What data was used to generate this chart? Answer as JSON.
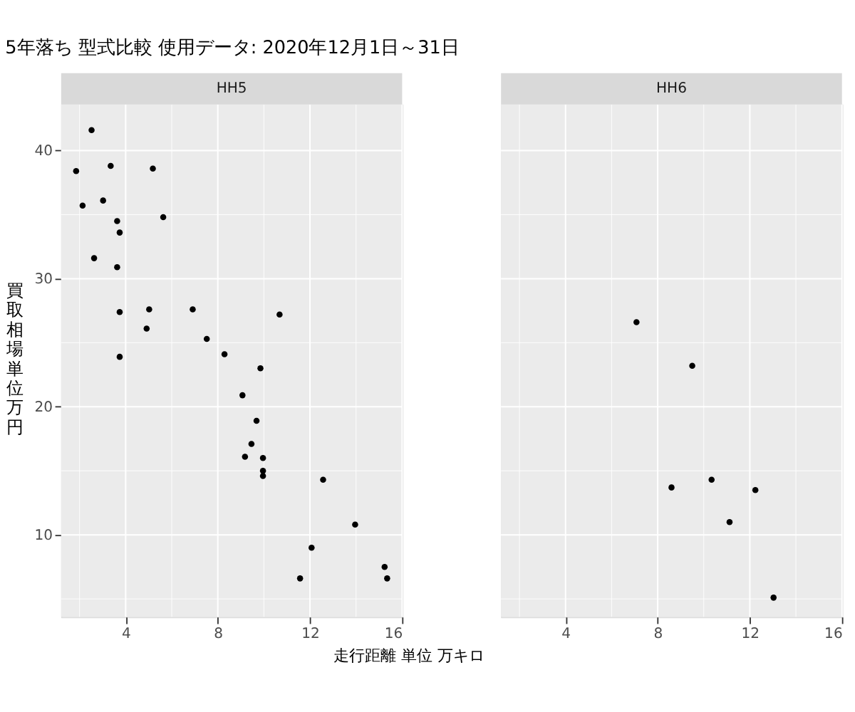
{
  "chart_data": [
    {
      "type": "scatter",
      "title": "HH5",
      "annotations": [
        "5年落ち 型式比較 使用データ: 2020年12月1日～31日"
      ],
      "xlabel": "走行距離 単位 万キロ",
      "ylabel": "買取相場単位万円",
      "color": "#000000",
      "marker": "circle",
      "grid": true,
      "x": [
        1.85,
        2.52,
        3.35,
        5.18,
        2.13,
        3.02,
        3.63,
        3.74,
        5.63,
        2.63,
        3.63,
        3.74,
        5.02,
        6.91,
        10.68,
        4.91,
        7.52,
        3.74,
        8.29,
        9.85,
        9.07,
        9.68,
        9.46,
        9.18,
        9.96,
        9.96,
        9.96,
        12.57,
        13.96,
        12.07,
        11.57,
        15.24,
        15.35
      ],
      "values": [
        38.4,
        41.6,
        38.8,
        38.6,
        35.7,
        36.1,
        34.5,
        33.6,
        34.8,
        31.6,
        30.9,
        27.4,
        27.6,
        27.6,
        27.2,
        26.1,
        25.3,
        23.9,
        24.1,
        23.0,
        20.9,
        18.9,
        17.1,
        16.1,
        16.0,
        15.0,
        14.6,
        14.3,
        10.8,
        9.0,
        6.6,
        7.5,
        6.6
      ],
      "xlim": [
        1.2,
        16.0
      ],
      "ylim": [
        3.6,
        43.6
      ],
      "xticks": [
        4,
        8,
        12,
        16
      ],
      "yticks": [
        10,
        20,
        30,
        40
      ]
    },
    {
      "type": "scatter",
      "title": "HH6",
      "color": "#000000",
      "marker": "circle",
      "grid": true,
      "tick_labels": "x",
      "x": [
        7.08,
        9.5,
        8.6,
        10.34,
        12.24,
        11.12,
        13.03
      ],
      "values": [
        26.6,
        23.2,
        13.7,
        14.3,
        13.5,
        11.0,
        5.1
      ],
      "xlim": [
        1.2,
        16.0
      ],
      "ylim": [
        3.6,
        43.6
      ],
      "xticks": [
        4,
        8,
        12,
        16
      ],
      "yticks": [
        10,
        20,
        30,
        40
      ]
    }
  ]
}
